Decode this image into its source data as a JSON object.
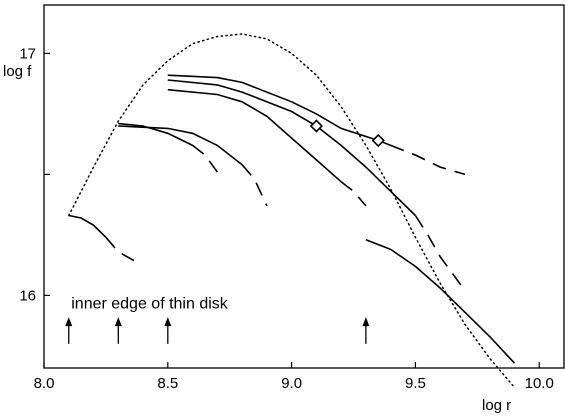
{
  "chart_data": {
    "type": "line",
    "title": "",
    "xlabel": "log r",
    "ylabel": "log f",
    "xlim": [
      8.0,
      10.1
    ],
    "ylim": [
      15.7,
      17.2
    ],
    "x_ticks": [
      {
        "value": 8.0,
        "label": "8.0"
      },
      {
        "value": 8.5,
        "label": "8.5"
      },
      {
        "value": 9.0,
        "label": "9.0"
      },
      {
        "value": 9.5,
        "label": "9.5"
      },
      {
        "value": 10.0,
        "label": "10.0"
      }
    ],
    "y_ticks": [
      {
        "value": 16.0,
        "label": "16"
      },
      {
        "value": 16.5,
        "label": ""
      },
      {
        "value": 17.0,
        "label": "17"
      }
    ],
    "envelope": {
      "style": "dotted",
      "points": [
        [
          8.1,
          16.33
        ],
        [
          8.2,
          16.53
        ],
        [
          8.3,
          16.72
        ],
        [
          8.4,
          16.87
        ],
        [
          8.5,
          16.97
        ],
        [
          8.6,
          17.04
        ],
        [
          8.7,
          17.07
        ],
        [
          8.8,
          17.08
        ],
        [
          8.9,
          17.06
        ],
        [
          9.0,
          17.0
        ],
        [
          9.1,
          16.91
        ],
        [
          9.2,
          16.78
        ],
        [
          9.3,
          16.62
        ],
        [
          9.4,
          16.44
        ],
        [
          9.5,
          16.24
        ],
        [
          9.6,
          16.05
        ],
        [
          9.7,
          15.88
        ],
        [
          9.8,
          15.74
        ],
        [
          9.9,
          15.62
        ]
      ]
    },
    "series": [
      {
        "segments": [
          {
            "style": "solid",
            "points": [
              [
                8.1,
                16.33
              ],
              [
                8.15,
                16.32
              ],
              [
                8.2,
                16.29
              ],
              [
                8.25,
                16.24
              ]
            ]
          },
          {
            "style": "dashed",
            "points": [
              [
                8.25,
                16.24
              ],
              [
                8.3,
                16.18
              ],
              [
                8.37,
                16.14
              ]
            ]
          }
        ]
      },
      {
        "segments": [
          {
            "style": "solid",
            "points": [
              [
                8.3,
                16.71
              ],
              [
                8.4,
                16.7
              ],
              [
                8.5,
                16.67
              ],
              [
                8.6,
                16.62
              ]
            ]
          },
          {
            "style": "dashed",
            "points": [
              [
                8.6,
                16.62
              ],
              [
                8.65,
                16.58
              ],
              [
                8.7,
                16.51
              ]
            ]
          }
        ]
      },
      {
        "segments": [
          {
            "style": "solid",
            "points": [
              [
                8.3,
                16.7
              ],
              [
                8.5,
                16.69
              ],
              [
                8.6,
                16.67
              ],
              [
                8.7,
                16.62
              ],
              [
                8.8,
                16.54
              ]
            ]
          },
          {
            "style": "dashed",
            "points": [
              [
                8.8,
                16.54
              ],
              [
                8.85,
                16.48
              ],
              [
                8.9,
                16.37
              ]
            ]
          }
        ]
      },
      {
        "segments": [
          {
            "style": "solid",
            "points": [
              [
                8.5,
                16.85
              ],
              [
                8.7,
                16.83
              ],
              [
                8.8,
                16.8
              ],
              [
                8.9,
                16.74
              ],
              [
                9.0,
                16.65
              ],
              [
                9.1,
                16.56
              ],
              [
                9.2,
                16.47
              ]
            ]
          },
          {
            "style": "dashed",
            "points": [
              [
                9.2,
                16.47
              ],
              [
                9.25,
                16.43
              ],
              [
                9.3,
                16.37
              ]
            ]
          }
        ]
      },
      {
        "segments": [
          {
            "style": "solid",
            "points": [
              [
                8.5,
                16.89
              ],
              [
                8.7,
                16.87
              ],
              [
                8.8,
                16.84
              ],
              [
                9.0,
                16.76
              ],
              [
                9.1,
                16.7
              ],
              [
                9.2,
                16.62
              ],
              [
                9.3,
                16.53
              ],
              [
                9.4,
                16.43
              ],
              [
                9.5,
                16.33
              ]
            ]
          },
          {
            "style": "dashed",
            "points": [
              [
                9.5,
                16.33
              ],
              [
                9.55,
                16.25
              ],
              [
                9.6,
                16.16
              ],
              [
                9.7,
                16.02
              ]
            ]
          }
        ]
      },
      {
        "segments": [
          {
            "style": "solid",
            "points": [
              [
                8.5,
                16.91
              ],
              [
                8.7,
                16.9
              ],
              [
                8.8,
                16.88
              ],
              [
                9.0,
                16.8
              ],
              [
                9.1,
                16.75
              ],
              [
                9.2,
                16.69
              ],
              [
                9.35,
                16.64
              ],
              [
                9.4,
                16.62
              ]
            ]
          },
          {
            "style": "dashed",
            "points": [
              [
                9.4,
                16.62
              ],
              [
                9.5,
                16.58
              ],
              [
                9.6,
                16.53
              ],
              [
                9.7,
                16.5
              ]
            ]
          }
        ]
      },
      {
        "segments": [
          {
            "style": "solid",
            "points": [
              [
                9.3,
                16.23
              ],
              [
                9.4,
                16.19
              ],
              [
                9.5,
                16.12
              ],
              [
                9.6,
                16.03
              ],
              [
                9.7,
                15.93
              ],
              [
                9.8,
                15.83
              ],
              [
                9.9,
                15.72
              ]
            ]
          }
        ]
      }
    ],
    "markers": [
      {
        "shape": "diamond",
        "x": 9.1,
        "y": 16.7
      },
      {
        "shape": "diamond",
        "x": 9.35,
        "y": 16.64
      }
    ],
    "annotations": [
      {
        "text": "inner edge of thin disk",
        "x": 8.11,
        "y": 15.97
      }
    ],
    "arrows": [
      {
        "x": 8.1,
        "y_from": 15.8,
        "y_to": 15.91
      },
      {
        "x": 8.3,
        "y_from": 15.8,
        "y_to": 15.91
      },
      {
        "x": 8.5,
        "y_from": 15.8,
        "y_to": 15.91
      },
      {
        "x": 9.3,
        "y_from": 15.8,
        "y_to": 15.91
      }
    ]
  }
}
